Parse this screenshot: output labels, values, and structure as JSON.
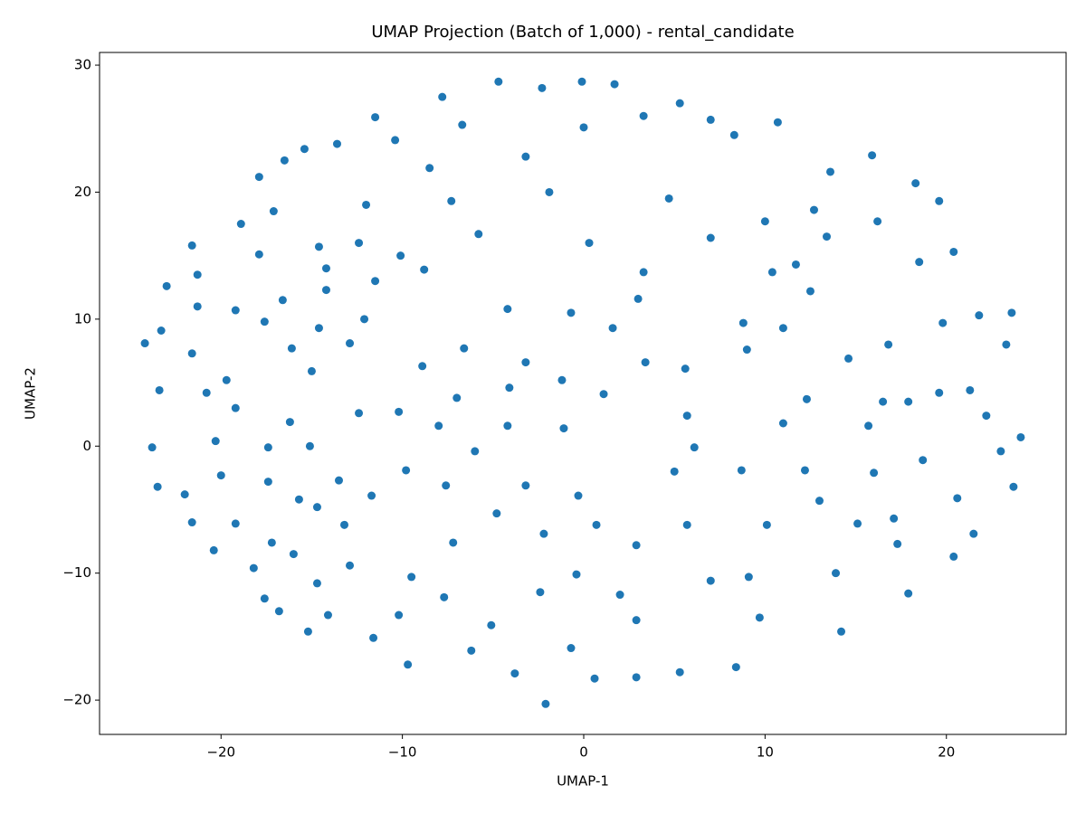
{
  "chart_data": {
    "type": "scatter",
    "title": "UMAP Projection (Batch of 1,000) - rental_candidate",
    "x_label": "UMAP-1",
    "y_label": "UMAP-2",
    "color": "#1f77b4",
    "xlim": [
      -26.7,
      26.6
    ],
    "ylim": [
      -22.7,
      31.0
    ],
    "xticks": [
      {
        "value": -20,
        "label": "−20"
      },
      {
        "value": -10,
        "label": "−10"
      },
      0,
      10,
      20
    ],
    "yticks": [
      {
        "value": -20,
        "label": "−20"
      },
      {
        "value": -10,
        "label": "−10"
      },
      0,
      10,
      20,
      30
    ],
    "x": [
      -24.2,
      -23.0,
      -23.3,
      -23.4,
      -23.8,
      -23.5,
      -21.6,
      -21.3,
      -21.3,
      -21.6,
      -20.8,
      -20.3,
      -21.6,
      -20.4,
      -17.9,
      -18.9,
      -17.9,
      -19.2,
      -17.6,
      -19.2,
      -17.4,
      -19.2,
      -18.2,
      -17.6,
      -16.8,
      -16.5,
      -17.1,
      -16.6,
      -16.1,
      -16.2,
      -17.4,
      -15.7,
      -16.0,
      -15.2,
      -15.4,
      -14.6,
      -14.6,
      -15.0,
      -15.1,
      -14.7,
      -14.7,
      -13.6,
      -14.2,
      -14.2,
      -12.9,
      -13.5,
      -12.9,
      -14.1,
      -11.5,
      -12.0,
      -12.4,
      -11.5,
      -12.1,
      -12.4,
      -11.7,
      -11.6,
      -10.4,
      -10.1,
      -10.2,
      -9.8,
      -9.5,
      -9.7,
      -8.5,
      -8.8,
      -8.9,
      -8.0,
      -7.6,
      -7.7,
      -7.8,
      -7.3,
      -6.6,
      -6.0,
      -6.7,
      -5.8,
      -4.8,
      -5.1,
      -4.7,
      -4.2,
      -4.1,
      -3.2,
      -3.8,
      -3.2,
      -2.3,
      -2.4,
      -2.1,
      -1.1,
      -1.9,
      -0.1,
      0.0,
      -0.7,
      -0.3,
      -0.4,
      0.3,
      1.1,
      1.7,
      1.6,
      2.0,
      0.6,
      3.3,
      3.3,
      3.4,
      2.9,
      2.9,
      5.3,
      5.0,
      5.6,
      5.3,
      7.0,
      7.0,
      6.1,
      7.0,
      8.3,
      9.0,
      8.8,
      9.1,
      8.4,
      10.7,
      10.0,
      10.4,
      11.0,
      11.0,
      10.1,
      9.7,
      12.5,
      13.0,
      12.3,
      13.6,
      13.4,
      14.6,
      14.2,
      16.0,
      16.2,
      15.9,
      15.1,
      16.5,
      17.1,
      16.8,
      17.9,
      17.9,
      18.7,
      18.5,
      20.4,
      19.8,
      19.6,
      20.6,
      20.4,
      21.3,
      21.8,
      23.0,
      23.3,
      23.6,
      23.7,
      24.1,
      22.2,
      18.3,
      21.5,
      19.6,
      17.3,
      13.9,
      12.7,
      11.7,
      2.9,
      -0.7,
      -6.2,
      -10.2,
      -13.2,
      -17.2,
      -20.0,
      -22.0,
      -19.7,
      -7.0,
      -3.2,
      3.0,
      4.7,
      5.7,
      8.7,
      12.2,
      15.7,
      -4.2,
      -1.2,
      -7.2,
      -2.2,
      0.7,
      5.7
    ],
    "values": [
      8.1,
      12.6,
      9.1,
      4.4,
      -0.1,
      -3.2,
      15.8,
      13.5,
      11.0,
      7.3,
      4.2,
      0.4,
      -6.0,
      -8.2,
      21.2,
      17.5,
      15.1,
      10.7,
      9.8,
      3.0,
      -0.1,
      -6.1,
      -9.6,
      -12.0,
      -13.0,
      22.5,
      18.5,
      11.5,
      7.7,
      1.9,
      -2.8,
      -4.2,
      -8.5,
      -14.6,
      23.4,
      15.7,
      9.3,
      5.9,
      0.0,
      -4.8,
      -10.8,
      23.8,
      14.0,
      12.3,
      8.1,
      -2.7,
      -9.4,
      -13.3,
      25.9,
      19.0,
      16.0,
      13.0,
      10.0,
      2.6,
      -3.9,
      -15.1,
      24.1,
      15.0,
      2.7,
      -1.9,
      -10.3,
      -17.2,
      21.9,
      13.9,
      6.3,
      1.6,
      -3.1,
      -11.9,
      27.5,
      19.3,
      7.7,
      -0.4,
      25.3,
      16.7,
      -5.3,
      -14.1,
      28.7,
      10.8,
      4.6,
      -3.1,
      -17.9,
      22.8,
      28.2,
      -11.5,
      -20.3,
      1.4,
      20.0,
      28.7,
      25.1,
      10.5,
      -3.9,
      -10.1,
      16.0,
      4.1,
      28.5,
      9.3,
      -11.7,
      -18.3,
      26.0,
      13.7,
      6.6,
      -7.8,
      -18.2,
      27.0,
      -2.0,
      6.1,
      -17.8,
      25.7,
      16.4,
      -0.1,
      -10.6,
      24.5,
      7.6,
      9.7,
      -10.3,
      -17.4,
      25.5,
      17.7,
      13.7,
      9.3,
      1.8,
      -6.2,
      -13.5,
      12.2,
      -4.3,
      3.7,
      21.6,
      16.5,
      6.9,
      -14.6,
      -2.1,
      17.7,
      22.9,
      -6.1,
      3.5,
      -5.7,
      8.0,
      3.5,
      -11.6,
      -1.1,
      14.5,
      15.3,
      9.7,
      4.2,
      -4.1,
      -8.7,
      4.4,
      10.3,
      -0.4,
      8.0,
      10.5,
      -3.2,
      0.7,
      2.4,
      20.7,
      -6.9,
      19.3,
      -7.7,
      -10.0,
      18.6,
      14.3,
      -13.7,
      -15.9,
      -16.1,
      -13.3,
      -6.2,
      -7.6,
      -2.3,
      -3.8,
      5.2,
      3.8,
      6.6,
      11.6,
      19.5,
      2.4,
      -1.9,
      -1.9,
      1.6,
      1.6,
      5.2,
      -7.6,
      -6.9,
      -6.2,
      -6.2
    ]
  }
}
